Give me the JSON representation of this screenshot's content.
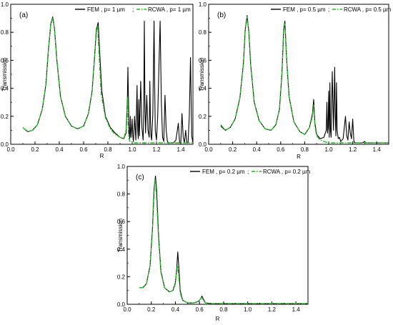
{
  "figure": {
    "panels_order": [
      "a",
      "b",
      "c"
    ]
  },
  "chart_data": [
    {
      "type": "line",
      "panel_label": "(a)",
      "xlabel": "R",
      "ylabel": "Transmission",
      "xlim": [
        0.0,
        1.5
      ],
      "ylim": [
        0.0,
        1.0
      ],
      "xticks": [
        0.0,
        0.2,
        0.4,
        0.6,
        0.8,
        1.0,
        1.2,
        1.4
      ],
      "yticks": [
        0.0,
        0.2,
        0.4,
        0.6,
        0.8,
        1.0
      ],
      "tick_labels_x": [
        "0.0",
        "0.2",
        "0.4",
        "0.6",
        "0.8",
        "1.0",
        "1.2",
        "1.4"
      ],
      "tick_labels_y": [
        "0.0",
        "0.2",
        "0.4",
        "0.6",
        "0.8",
        "1.0"
      ],
      "grid": false,
      "legend_placement": "top-right",
      "series": [
        {
          "name": "FEM , p= 1 µm",
          "style": "solid",
          "color": "#000000",
          "x": [
            0.1,
            0.14,
            0.18,
            0.22,
            0.26,
            0.29,
            0.31,
            0.33,
            0.345,
            0.36,
            0.38,
            0.41,
            0.45,
            0.5,
            0.55,
            0.6,
            0.64,
            0.67,
            0.69,
            0.705,
            0.72,
            0.735,
            0.75,
            0.78,
            0.82,
            0.86,
            0.9,
            0.93,
            0.95,
            0.96,
            0.965,
            0.97,
            0.975,
            0.98,
            0.985,
            0.99,
            0.995,
            1.0,
            1.005,
            1.01,
            1.02,
            1.03,
            1.04,
            1.045,
            1.05,
            1.055,
            1.06,
            1.07,
            1.08,
            1.09,
            1.095,
            1.1,
            1.105,
            1.11,
            1.12,
            1.13,
            1.14,
            1.145,
            1.15,
            1.155,
            1.16,
            1.17,
            1.18,
            1.185,
            1.19,
            1.2,
            1.21,
            1.22,
            1.23,
            1.24,
            1.25,
            1.26,
            1.27,
            1.28,
            1.29,
            1.3,
            1.32,
            1.34,
            1.36,
            1.38,
            1.39,
            1.4,
            1.41,
            1.42,
            1.43,
            1.44,
            1.45,
            1.46,
            1.47,
            1.48,
            1.49,
            1.5
          ],
          "y": [
            0.12,
            0.09,
            0.1,
            0.14,
            0.25,
            0.43,
            0.67,
            0.86,
            0.91,
            0.83,
            0.6,
            0.34,
            0.2,
            0.13,
            0.11,
            0.13,
            0.22,
            0.38,
            0.62,
            0.82,
            0.87,
            0.62,
            0.38,
            0.2,
            0.12,
            0.08,
            0.05,
            0.04,
            0.08,
            0.3,
            0.55,
            0.28,
            0.08,
            0.04,
            0.2,
            0.05,
            0.1,
            0.18,
            0.06,
            0.02,
            0.2,
            0.03,
            0.42,
            0.1,
            0.04,
            0.32,
            0.06,
            0.45,
            0.12,
            0.03,
            0.25,
            0.88,
            0.3,
            0.08,
            0.35,
            0.1,
            0.05,
            0.45,
            0.18,
            0.06,
            0.03,
            0.22,
            0.88,
            0.4,
            0.1,
            0.03,
            0.2,
            0.55,
            0.88,
            0.3,
            0.05,
            0.02,
            0.35,
            0.1,
            0.02,
            0.01,
            0.01,
            0.01,
            0.03,
            0.15,
            0.01,
            0.01,
            0.22,
            0.05,
            0.01,
            0.1,
            0.01,
            0.01,
            0.2,
            0.62,
            0.06,
            0.01
          ]
        },
        {
          "name": "RCWA , p= 1 µm",
          "style": "dash-dot",
          "color": "#22b822",
          "x": [
            0.1,
            0.14,
            0.18,
            0.22,
            0.26,
            0.29,
            0.31,
            0.33,
            0.345,
            0.36,
            0.38,
            0.41,
            0.45,
            0.5,
            0.55,
            0.6,
            0.64,
            0.67,
            0.69,
            0.705,
            0.715,
            0.73,
            0.745,
            0.78,
            0.82,
            0.86,
            0.9,
            0.93,
            0.95,
            0.96,
            0.965,
            0.97,
            0.98,
            1.0,
            1.05,
            1.1,
            1.2,
            1.3,
            1.4,
            1.5
          ],
          "y": [
            0.12,
            0.09,
            0.1,
            0.14,
            0.25,
            0.43,
            0.67,
            0.86,
            0.9,
            0.83,
            0.6,
            0.34,
            0.2,
            0.13,
            0.11,
            0.13,
            0.22,
            0.38,
            0.62,
            0.8,
            0.85,
            0.6,
            0.36,
            0.19,
            0.11,
            0.07,
            0.05,
            0.04,
            0.1,
            0.34,
            0.2,
            0.06,
            0.02,
            0.01,
            0.01,
            0.01,
            0.01,
            0.01,
            0.01,
            0.01
          ]
        }
      ]
    },
    {
      "type": "line",
      "panel_label": "(b)",
      "xlabel": "R",
      "ylabel": "Transmission",
      "xlim": [
        0.0,
        1.5
      ],
      "ylim": [
        0.0,
        1.0
      ],
      "xticks": [
        0.0,
        0.2,
        0.4,
        0.6,
        0.8,
        1.0,
        1.2,
        1.4
      ],
      "yticks": [
        0.0,
        0.2,
        0.4,
        0.6,
        0.8,
        1.0
      ],
      "tick_labels_x": [
        "0.0",
        "0.2",
        "0.4",
        "0.6",
        "0.8",
        "1.0",
        "1.2",
        "1.4"
      ],
      "tick_labels_y": [
        "0.0",
        "0.2",
        "0.4",
        "0.6",
        "0.8",
        "1.0"
      ],
      "grid": false,
      "legend_placement": "top-right",
      "series": [
        {
          "name": "FEM , p= 0.5 µm",
          "style": "solid",
          "color": "#000000",
          "x": [
            0.1,
            0.14,
            0.18,
            0.22,
            0.26,
            0.29,
            0.305,
            0.32,
            0.335,
            0.35,
            0.38,
            0.42,
            0.47,
            0.52,
            0.56,
            0.59,
            0.61,
            0.625,
            0.635,
            0.65,
            0.67,
            0.71,
            0.76,
            0.8,
            0.84,
            0.865,
            0.875,
            0.885,
            0.9,
            0.93,
            0.96,
            0.98,
            0.985,
            0.99,
            0.995,
            1.0,
            1.005,
            1.01,
            1.015,
            1.02,
            1.03,
            1.04,
            1.05,
            1.055,
            1.06,
            1.065,
            1.07,
            1.08,
            1.09,
            1.1,
            1.12,
            1.14,
            1.15,
            1.16,
            1.17,
            1.18,
            1.19,
            1.2,
            1.21,
            1.22,
            1.23,
            1.25,
            1.28,
            1.3,
            1.31,
            1.32,
            1.35,
            1.4,
            1.5
          ],
          "y": [
            0.13,
            0.1,
            0.12,
            0.18,
            0.33,
            0.58,
            0.82,
            0.92,
            0.8,
            0.57,
            0.3,
            0.17,
            0.11,
            0.1,
            0.14,
            0.25,
            0.5,
            0.82,
            0.88,
            0.6,
            0.34,
            0.16,
            0.09,
            0.07,
            0.12,
            0.22,
            0.32,
            0.15,
            0.07,
            0.04,
            0.05,
            0.1,
            0.3,
            0.08,
            0.12,
            0.38,
            0.05,
            0.44,
            0.1,
            0.05,
            0.52,
            0.1,
            0.55,
            0.2,
            0.06,
            0.44,
            0.1,
            0.04,
            0.05,
            0.02,
            0.04,
            0.2,
            0.06,
            0.03,
            0.16,
            0.08,
            0.04,
            0.18,
            0.02,
            0.01,
            0.01,
            0.01,
            0.01,
            0.02,
            0.01,
            0.01,
            0.01,
            0.01,
            0.01
          ]
        },
        {
          "name": "RCWA , p= 0.5 µm",
          "style": "dash-dot",
          "color": "#22b822",
          "x": [
            0.1,
            0.14,
            0.18,
            0.22,
            0.26,
            0.29,
            0.305,
            0.32,
            0.335,
            0.35,
            0.38,
            0.42,
            0.47,
            0.52,
            0.56,
            0.59,
            0.61,
            0.625,
            0.635,
            0.65,
            0.67,
            0.71,
            0.76,
            0.8,
            0.84,
            0.865,
            0.875,
            0.885,
            0.9,
            0.93,
            0.96,
            1.0,
            1.1,
            1.2,
            1.3,
            1.4,
            1.5
          ],
          "y": [
            0.14,
            0.1,
            0.12,
            0.18,
            0.33,
            0.58,
            0.82,
            0.91,
            0.8,
            0.57,
            0.3,
            0.17,
            0.11,
            0.1,
            0.14,
            0.25,
            0.5,
            0.8,
            0.86,
            0.6,
            0.34,
            0.16,
            0.09,
            0.07,
            0.12,
            0.2,
            0.28,
            0.13,
            0.06,
            0.03,
            0.02,
            0.01,
            0.01,
            0.01,
            0.01,
            0.01,
            0.01
          ]
        }
      ]
    },
    {
      "type": "line",
      "panel_label": "(c)",
      "xlabel": "R",
      "ylabel": "Transmission",
      "xlim": [
        0.0,
        1.5
      ],
      "ylim": [
        0.0,
        1.0
      ],
      "xticks": [
        0.0,
        0.2,
        0.4,
        0.6,
        0.8,
        1.0,
        1.2,
        1.4
      ],
      "yticks": [
        0.0,
        0.2,
        0.4,
        0.6,
        0.8,
        1.0
      ],
      "tick_labels_x": [
        "0.0",
        "0.2",
        "0.4",
        "0.6",
        "0.8",
        "1.0",
        "1.2",
        "1.4"
      ],
      "tick_labels_y": [
        "0.0",
        "0.2",
        "0.4",
        "0.6",
        "0.8",
        "1.0"
      ],
      "grid": false,
      "legend_placement": "top-right",
      "series": [
        {
          "name": "FEM , p= 0.2 µm",
          "style": "solid",
          "color": "#000000",
          "x": [
            0.1,
            0.13,
            0.16,
            0.19,
            0.21,
            0.225,
            0.235,
            0.245,
            0.26,
            0.28,
            0.31,
            0.35,
            0.38,
            0.4,
            0.41,
            0.42,
            0.43,
            0.44,
            0.46,
            0.5,
            0.55,
            0.59,
            0.61,
            0.62,
            0.63,
            0.65,
            0.7,
            0.8,
            1.0,
            1.2,
            1.5
          ],
          "y": [
            0.12,
            0.12,
            0.15,
            0.28,
            0.55,
            0.85,
            0.93,
            0.82,
            0.5,
            0.24,
            0.12,
            0.09,
            0.1,
            0.16,
            0.25,
            0.38,
            0.25,
            0.1,
            0.03,
            0.01,
            0.01,
            0.02,
            0.04,
            0.06,
            0.04,
            0.01,
            0.005,
            0.005,
            0.005,
            0.005,
            0.005
          ]
        },
        {
          "name": "RCWA , p= 0.2 µm",
          "style": "dash-dot",
          "color": "#22b822",
          "x": [
            0.1,
            0.13,
            0.16,
            0.19,
            0.21,
            0.222,
            0.232,
            0.242,
            0.26,
            0.28,
            0.31,
            0.35,
            0.38,
            0.4,
            0.408,
            0.418,
            0.428,
            0.44,
            0.46,
            0.5,
            0.55,
            0.59,
            0.61,
            0.62,
            0.63,
            0.65,
            0.7,
            0.8,
            1.0,
            1.2,
            1.5
          ],
          "y": [
            0.12,
            0.12,
            0.15,
            0.28,
            0.55,
            0.84,
            0.91,
            0.8,
            0.48,
            0.23,
            0.12,
            0.09,
            0.1,
            0.15,
            0.22,
            0.28,
            0.2,
            0.08,
            0.03,
            0.01,
            0.01,
            0.02,
            0.04,
            0.05,
            0.03,
            0.01,
            0.005,
            0.005,
            0.005,
            0.005,
            0.005
          ]
        }
      ]
    }
  ]
}
